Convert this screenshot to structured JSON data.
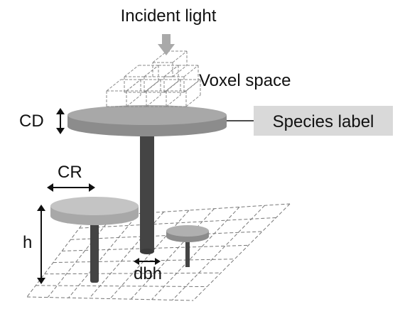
{
  "labels": {
    "incident_light": "Incident light",
    "voxel_space": "Voxel space",
    "crown_depth": "CD",
    "species_label": "Species label",
    "crown_radius": "CR",
    "height": "h",
    "dbh": "dbh"
  },
  "colors": {
    "crown_top": "#b8b8b8",
    "crown_side": "#8c8c8c",
    "trunk": "#444444",
    "arrow": "#a9a9a9",
    "species_box": "#d9d9d9",
    "grid": "#777777"
  }
}
